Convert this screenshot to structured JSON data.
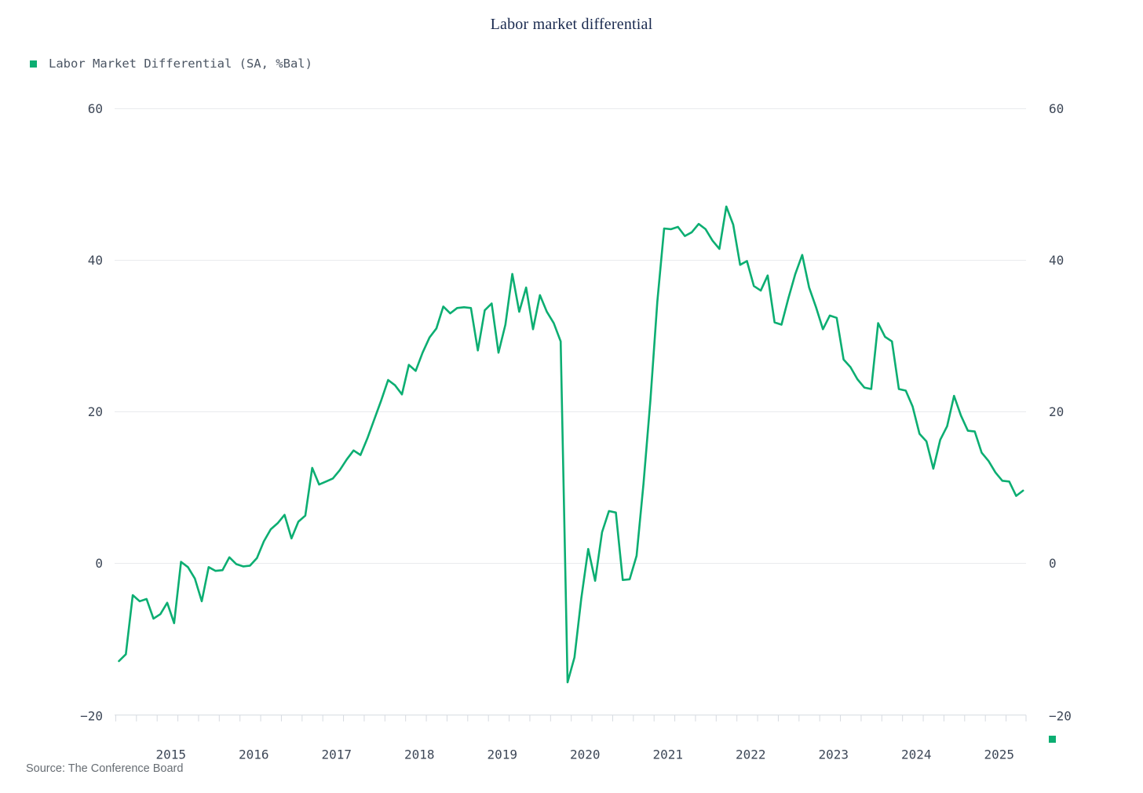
{
  "title": "Labor market differential",
  "legend": {
    "items": [
      {
        "label": "Labor Market Differential (SA, %Bal)",
        "marker_color": "#0cae72"
      }
    ]
  },
  "source_note": "Source: The Conference Board",
  "colors": {
    "series_green": "#0cae72",
    "grid": "#e9ebee",
    "axis": "#d6dae0",
    "axis_text": "#3d4757",
    "title_text": "#1a2a4f",
    "legend_text": "#4b5563",
    "source_text": "#676d73",
    "background": "#ffffff"
  },
  "chart_data": {
    "type": "line",
    "title": "Labor market differential",
    "xlabel": "",
    "ylabel": "",
    "grid": true,
    "legend_position": "top-left",
    "ylim": [
      -20,
      60
    ],
    "y_ticks": [
      60,
      40,
      20,
      0,
      -20
    ],
    "y_axis_sides": [
      "left",
      "right"
    ],
    "x_tick_labels": [
      "2015",
      "2016",
      "2017",
      "2018",
      "2019",
      "2020",
      "2021",
      "2022",
      "2023",
      "2024",
      "2025"
    ],
    "series": [
      {
        "name": "Labor Market Differential (SA, %Bal)",
        "color": "#0cae72",
        "frequency": "monthly",
        "start_month": "2014-11",
        "end_month": "2025-10",
        "values": [
          -12.9,
          -12.0,
          -4.2,
          -5.0,
          -4.7,
          -7.3,
          -6.7,
          -5.2,
          -7.9,
          0.2,
          -0.5,
          -2.0,
          -5.0,
          -0.5,
          -1.0,
          -0.9,
          0.8,
          -0.1,
          -0.4,
          -0.3,
          0.7,
          2.9,
          4.5,
          5.3,
          6.4,
          3.3,
          5.5,
          6.3,
          12.6,
          10.4,
          10.8,
          11.2,
          12.3,
          13.7,
          14.9,
          14.3,
          16.5,
          19.0,
          21.5,
          24.2,
          23.5,
          22.3,
          26.2,
          25.4,
          27.8,
          29.8,
          31.0,
          33.9,
          33.0,
          33.7,
          33.8,
          33.7,
          28.1,
          33.4,
          34.3,
          27.8,
          31.5,
          38.2,
          33.2,
          36.4,
          30.9,
          35.4,
          33.2,
          31.7,
          29.3,
          -15.7,
          -12.4,
          -4.6,
          1.9,
          -2.3,
          4.1,
          6.9,
          6.7,
          -2.2,
          -2.1,
          1.0,
          10.5,
          21.5,
          34.5,
          44.2,
          44.1,
          44.4,
          43.2,
          43.7,
          44.8,
          44.1,
          42.6,
          41.5,
          47.1,
          44.7,
          39.4,
          39.9,
          36.6,
          36.0,
          38.0,
          31.8,
          31.5,
          35.0,
          38.2,
          40.7,
          36.4,
          33.8,
          30.9,
          32.7,
          32.4,
          26.9,
          25.9,
          24.3,
          23.2,
          23.0,
          31.7,
          29.9,
          29.3,
          23.0,
          22.8,
          20.7,
          17.1,
          16.1,
          12.5,
          16.3,
          18.1,
          22.1,
          19.5,
          17.5,
          17.4,
          14.6,
          13.5,
          12.0,
          10.9,
          10.8,
          8.9,
          9.6
        ]
      }
    ]
  }
}
